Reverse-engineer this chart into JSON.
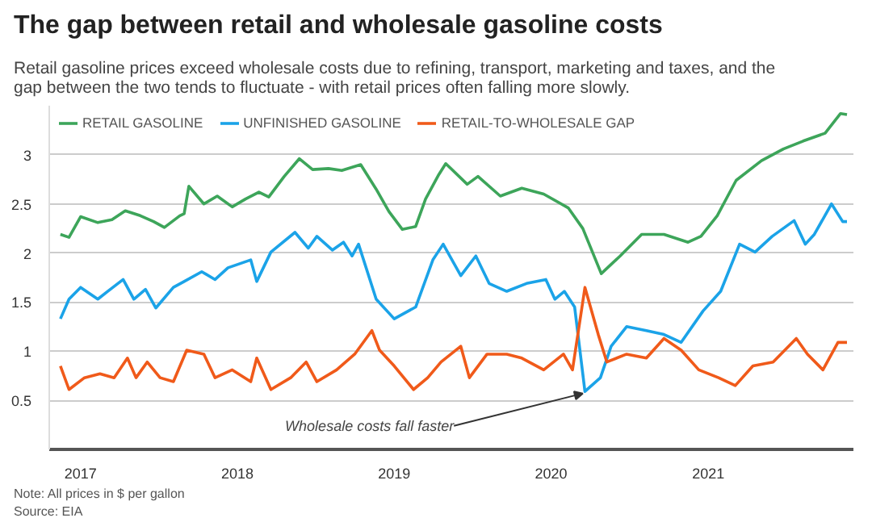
{
  "chart_data": {
    "type": "line",
    "title": "The gap between retail and wholesale gasoline costs",
    "subtitle": "Retail gasoline prices exceed wholesale costs due to refining, transport, marketing and taxes, and the\ngap between the two tends to fluctuate - with retail prices often falling more slowly.",
    "series": [
      {
        "name": "RETAIL GASOLINE",
        "color": "#3da55a",
        "x": [
          "2016-11-15",
          "2016-12-05",
          "2017-01-01",
          "2017-02-10",
          "2017-03-15",
          "2017-04-15",
          "2017-05-20",
          "2017-06-20",
          "2017-07-15",
          "2017-08-20",
          "2017-08-30",
          "2017-09-10",
          "2017-10-15",
          "2017-11-15",
          "2017-12-20",
          "2018-01-20",
          "2018-02-20",
          "2018-03-15",
          "2018-04-20",
          "2018-05-25",
          "2018-06-25",
          "2018-08-01",
          "2018-09-01",
          "2018-10-15",
          "2018-11-20",
          "2018-12-20",
          "2019-01-20",
          "2019-02-20",
          "2019-03-15",
          "2019-04-15",
          "2019-05-01",
          "2019-06-20",
          "2019-07-15",
          "2019-09-05",
          "2019-10-25",
          "2019-12-15",
          "2020-02-10",
          "2020-03-15",
          "2020-04-27",
          "2020-06-10",
          "2020-07-30",
          "2020-09-20",
          "2020-11-15",
          "2020-12-15",
          "2021-01-22",
          "2021-03-07",
          "2021-05-05",
          "2021-06-25",
          "2021-08-10",
          "2021-09-30",
          "2021-11-05",
          "2021-11-20"
        ],
        "values": [
          2.19,
          2.16,
          2.37,
          2.31,
          2.34,
          2.43,
          2.38,
          2.32,
          2.26,
          2.38,
          2.4,
          2.68,
          2.5,
          2.58,
          2.47,
          2.55,
          2.62,
          2.57,
          2.78,
          2.96,
          2.85,
          2.86,
          2.84,
          2.9,
          2.65,
          2.42,
          2.24,
          2.27,
          2.55,
          2.8,
          2.91,
          2.7,
          2.78,
          2.58,
          2.66,
          2.6,
          2.46,
          2.25,
          1.79,
          1.97,
          2.19,
          2.19,
          2.11,
          2.17,
          2.38,
          2.74,
          2.94,
          3.06,
          3.14,
          3.22,
          3.42,
          3.41
        ]
      },
      {
        "name": "UNFINISHED GASOLINE",
        "color": "#1ba3e8",
        "x": [
          "2016-11-15",
          "2016-12-05",
          "2017-01-01",
          "2017-02-10",
          "2017-03-05",
          "2017-04-10",
          "2017-05-05",
          "2017-06-01",
          "2017-06-25",
          "2017-08-05",
          "2017-08-30",
          "2017-10-10",
          "2017-11-10",
          "2017-12-10",
          "2018-02-01",
          "2018-02-15",
          "2018-03-20",
          "2018-05-15",
          "2018-06-15",
          "2018-07-05",
          "2018-08-10",
          "2018-09-05",
          "2018-09-25",
          "2018-10-10",
          "2018-11-20",
          "2019-01-01",
          "2019-02-20",
          "2019-04-01",
          "2019-04-25",
          "2019-06-05",
          "2019-07-10",
          "2019-08-10",
          "2019-09-20",
          "2019-11-05",
          "2019-12-20",
          "2020-01-10",
          "2020-02-01",
          "2020-02-25",
          "2020-03-20",
          "2020-04-25",
          "2020-05-20",
          "2020-06-25",
          "2020-08-10",
          "2020-09-20",
          "2020-10-30",
          "2020-12-20",
          "2021-01-30",
          "2021-03-15",
          "2021-04-20",
          "2021-05-30",
          "2021-07-20",
          "2021-08-15",
          "2021-09-05",
          "2021-10-15",
          "2021-11-10",
          "2021-11-20"
        ],
        "values": [
          1.33,
          1.53,
          1.65,
          1.53,
          1.61,
          1.73,
          1.53,
          1.63,
          1.44,
          1.65,
          1.71,
          1.81,
          1.73,
          1.85,
          1.93,
          1.71,
          2.01,
          2.21,
          2.05,
          2.17,
          2.03,
          2.11,
          1.97,
          2.09,
          1.53,
          1.33,
          1.45,
          1.93,
          2.09,
          1.77,
          1.97,
          1.69,
          1.61,
          1.69,
          1.73,
          1.53,
          1.61,
          1.45,
          0.59,
          0.73,
          1.05,
          1.25,
          1.21,
          1.17,
          1.09,
          1.41,
          1.61,
          2.09,
          2.01,
          2.17,
          2.33,
          2.09,
          2.19,
          2.5,
          2.32,
          2.32
        ]
      },
      {
        "name": "RETAIL-TO-WHOLESALE GAP",
        "color": "#f05a1a",
        "x": [
          "2016-11-15",
          "2016-12-05",
          "2017-01-10",
          "2017-02-15",
          "2017-03-20",
          "2017-04-20",
          "2017-05-10",
          "2017-06-05",
          "2017-07-05",
          "2017-08-05",
          "2017-09-05",
          "2017-10-15",
          "2017-11-10",
          "2017-12-20",
          "2018-02-01",
          "2018-02-15",
          "2018-03-20",
          "2018-05-05",
          "2018-06-10",
          "2018-07-05",
          "2018-08-20",
          "2018-10-01",
          "2018-11-10",
          "2018-11-28",
          "2019-01-01",
          "2019-02-15",
          "2019-03-20",
          "2019-04-20",
          "2019-06-05",
          "2019-06-25",
          "2019-08-05",
          "2019-09-20",
          "2019-10-25",
          "2019-12-15",
          "2020-01-30",
          "2020-02-20",
          "2020-03-20",
          "2020-04-20",
          "2020-05-10",
          "2020-06-25",
          "2020-08-10",
          "2020-09-20",
          "2020-10-30",
          "2020-12-10",
          "2021-01-25",
          "2021-03-05",
          "2021-04-15",
          "2021-06-01",
          "2021-07-25",
          "2021-08-20",
          "2021-09-25",
          "2021-10-30",
          "2021-11-20"
        ],
        "values": [
          0.85,
          0.61,
          0.73,
          0.77,
          0.73,
          0.93,
          0.73,
          0.89,
          0.73,
          0.69,
          1.01,
          0.97,
          0.73,
          0.81,
          0.69,
          0.93,
          0.61,
          0.73,
          0.89,
          0.69,
          0.81,
          0.97,
          1.21,
          1.01,
          0.85,
          0.61,
          0.73,
          0.89,
          1.05,
          0.73,
          0.97,
          0.97,
          0.93,
          0.81,
          0.97,
          0.81,
          1.65,
          1.17,
          0.89,
          0.97,
          0.93,
          1.13,
          1.01,
          0.81,
          0.73,
          0.65,
          0.85,
          0.89,
          1.13,
          0.97,
          0.81,
          1.09,
          1.09
        ]
      }
    ],
    "xlim": [
      "2016-10-20",
      "2021-12-05"
    ],
    "xticks": [
      {
        "value": "2017-01-01",
        "label": "2017"
      },
      {
        "value": "2018-01-01",
        "label": "2018"
      },
      {
        "value": "2019-01-01",
        "label": "2019"
      },
      {
        "value": "2020-01-01",
        "label": "2020"
      },
      {
        "value": "2021-01-01",
        "label": "2021"
      }
    ],
    "ylim": [
      0,
      3.5
    ],
    "yticks": [
      0.5,
      1,
      1.5,
      2,
      2.5,
      3
    ],
    "grid": "y",
    "legend": "top",
    "line_style": "solid",
    "annotations": [
      {
        "text": "Wholesale costs fall faster",
        "x": "2020-03-15",
        "y": 0.57
      },
      "Note: All prices in $ per gallon",
      "Source: EIA"
    ]
  }
}
